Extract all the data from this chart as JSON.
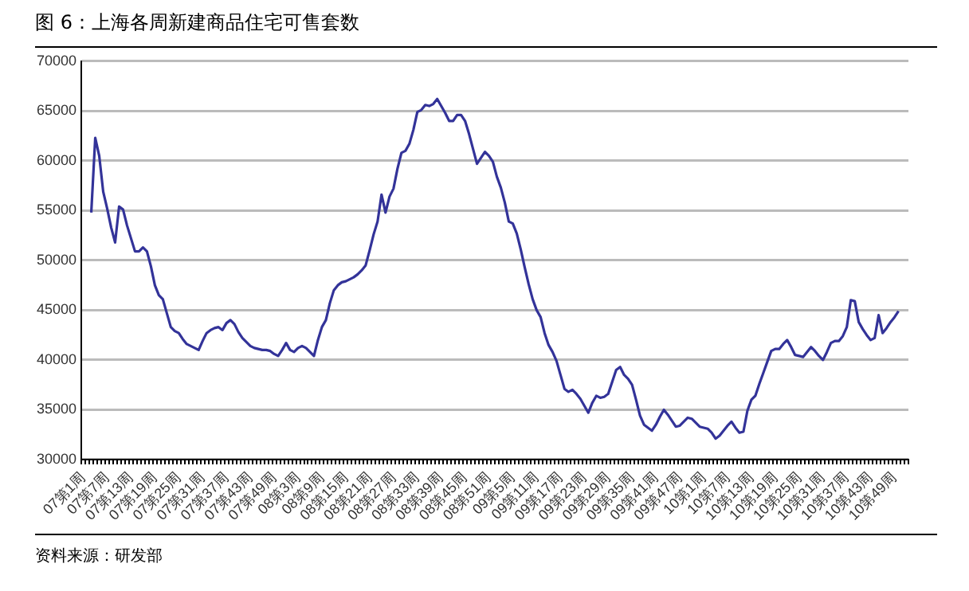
{
  "chart_data": {
    "type": "line",
    "title": "图 6：上海各周新建商品住宅可售套数",
    "annotations": [
      "资料来源：研发部"
    ],
    "categories": [
      "07第1周",
      null,
      null,
      null,
      null,
      null,
      "07第7周",
      null,
      null,
      null,
      null,
      null,
      "07第13周",
      null,
      null,
      null,
      null,
      null,
      "07第19周",
      null,
      null,
      null,
      null,
      null,
      "07第25周",
      null,
      null,
      null,
      null,
      null,
      "07第31周",
      null,
      null,
      null,
      null,
      null,
      "07第37周",
      null,
      null,
      null,
      null,
      null,
      "07第43周",
      null,
      null,
      null,
      null,
      null,
      "07第49周",
      null,
      null,
      null,
      null,
      null,
      "08第3周",
      null,
      null,
      null,
      null,
      null,
      "08第9周",
      null,
      null,
      null,
      null,
      null,
      "08第15周",
      null,
      null,
      null,
      null,
      null,
      "08第21周",
      null,
      null,
      null,
      null,
      null,
      "08第27周",
      null,
      null,
      null,
      null,
      null,
      "08第33周",
      null,
      null,
      null,
      null,
      null,
      "08第39周",
      null,
      null,
      null,
      null,
      null,
      "08第45周",
      null,
      null,
      null,
      null,
      null,
      "08第51周",
      null,
      null,
      null,
      null,
      null,
      "09第5周",
      null,
      null,
      null,
      null,
      null,
      "09第11周",
      null,
      null,
      null,
      null,
      null,
      "09第17周",
      null,
      null,
      null,
      null,
      null,
      "09第23周",
      null,
      null,
      null,
      null,
      null,
      "09第29周",
      null,
      null,
      null,
      null,
      null,
      "09第35周",
      null,
      null,
      null,
      null,
      null,
      "09第41周",
      null,
      null,
      null,
      null,
      null,
      "09第47周",
      null,
      null,
      null,
      null,
      null,
      "10第1周",
      null,
      null,
      null,
      null,
      null,
      "10第7周",
      null,
      null,
      null,
      null,
      null,
      "10第13周",
      null,
      null,
      null,
      null,
      null,
      "10第19周",
      null,
      null,
      null,
      null,
      null,
      "10第25周",
      null,
      null,
      null,
      null,
      null,
      "10第31周",
      null,
      null,
      null,
      null,
      null,
      "10第37周",
      null,
      null,
      null,
      null,
      null,
      "10第43周",
      null,
      null,
      null,
      null,
      null,
      "10第49周",
      null,
      null,
      null
    ],
    "ylim": [
      30000,
      70000
    ],
    "yticks": [
      30000,
      35000,
      40000,
      45000,
      50000,
      55000,
      60000,
      65000,
      70000
    ],
    "grid": "y",
    "legend": false,
    "marker": "none",
    "series": [
      {
        "color": "#333399",
        "values": [
          null,
          null,
          54800,
          62300,
          60500,
          56900,
          55200,
          53300,
          51800,
          55400,
          55100,
          53500,
          52200,
          50900,
          50900,
          51300,
          50900,
          49400,
          47500,
          46500,
          46100,
          44700,
          43300,
          42900,
          42700,
          42100,
          41600,
          41400,
          41200,
          41000,
          41900,
          42700,
          43000,
          43200,
          43300,
          43000,
          43700,
          44000,
          43600,
          42800,
          42200,
          41800,
          41400,
          41200,
          41100,
          41000,
          41000,
          40900,
          40600,
          40400,
          41000,
          41700,
          41000,
          40800,
          41200,
          41400,
          41200,
          40800,
          40400,
          42000,
          43300,
          44000,
          45700,
          47000,
          47500,
          47800,
          47900,
          48100,
          48300,
          48600,
          49000,
          49500,
          51000,
          52600,
          53900,
          56600,
          54800,
          56400,
          57200,
          59200,
          60800,
          61000,
          61700,
          63100,
          64900,
          65100,
          65600,
          65500,
          65700,
          66200,
          65500,
          64800,
          64000,
          64000,
          64600,
          64600,
          64000,
          62700,
          61200,
          59700,
          60300,
          60900,
          60500,
          59900,
          58400,
          57300,
          55800,
          53900,
          53700,
          52700,
          51100,
          49300,
          47600,
          46100,
          45000,
          44300,
          42700,
          41500,
          40800,
          39900,
          38500,
          37100,
          36800,
          37000,
          36600,
          36100,
          35400,
          34700,
          35700,
          36400,
          36200,
          36300,
          36600,
          37800,
          39000,
          39300,
          38500,
          38100,
          37500,
          36000,
          34400,
          33500,
          33200,
          32900,
          33500,
          34300,
          35000,
          34500,
          33900,
          33300,
          33400,
          33800,
          34200,
          34100,
          33700,
          33300,
          33200,
          33100,
          32700,
          32100,
          32400,
          32900,
          33400,
          33800,
          33200,
          32700,
          32800,
          34900,
          36000,
          36400,
          37600,
          38700,
          39800,
          40900,
          41100,
          41100,
          41600,
          42000,
          41300,
          40500,
          40400,
          40300,
          40800,
          41300,
          40900,
          40400,
          40000,
          40800,
          41700,
          41900,
          41900,
          42400,
          43300,
          46000,
          45900,
          43800,
          43100,
          42500,
          42000,
          42200,
          44500,
          42700,
          43200,
          43800,
          44300,
          44900,
          null,
          null
        ]
      }
    ]
  }
}
